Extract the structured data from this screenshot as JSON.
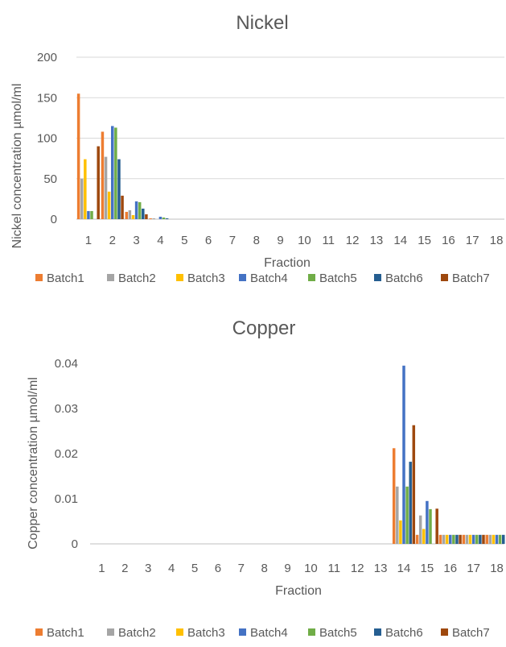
{
  "colors": {
    "Batch1": "#ED7D31",
    "Batch2": "#A5A5A5",
    "Batch3": "#FFC000",
    "Batch4": "#4472C4",
    "Batch5": "#70AD47",
    "Batch6": "#255E91",
    "Batch7": "#9E480E",
    "text": "#595959",
    "grid": "#D9D9D9",
    "axis": "#BFBFBF"
  },
  "chart_data": [
    {
      "type": "bar",
      "title": "Nickel",
      "xlabel": "Fraction",
      "ylabel": "Nickel concentration µmol/ml",
      "ylim": [
        0,
        200
      ],
      "yticks": [
        "0",
        "50",
        "100",
        "150",
        "200"
      ],
      "categories": [
        "1",
        "2",
        "3",
        "4",
        "5",
        "6",
        "7",
        "8",
        "9",
        "10",
        "11",
        "12",
        "13",
        "14",
        "15",
        "16",
        "17",
        "18"
      ],
      "grid": true,
      "legend": "bottom",
      "series": [
        {
          "name": "Batch1",
          "values": [
            155,
            108,
            9,
            1,
            0,
            0,
            0,
            0,
            0,
            0,
            0,
            0,
            0,
            0,
            0,
            0,
            0,
            0
          ]
        },
        {
          "name": "Batch2",
          "values": [
            50,
            77,
            11,
            1,
            0,
            0,
            0,
            0,
            0,
            0,
            0,
            0,
            0,
            0,
            0,
            0,
            0,
            0
          ]
        },
        {
          "name": "Batch3",
          "values": [
            74,
            34,
            5,
            0,
            0,
            0,
            0,
            0,
            0,
            0,
            0,
            0,
            0,
            0,
            0,
            0,
            0,
            0
          ]
        },
        {
          "name": "Batch4",
          "values": [
            10,
            115,
            22,
            3,
            0,
            0,
            0,
            0,
            0,
            0,
            0,
            0,
            0,
            0,
            0,
            0,
            0,
            0
          ]
        },
        {
          "name": "Batch5",
          "values": [
            10,
            113,
            21,
            2,
            0,
            0,
            0,
            0,
            0,
            0,
            0,
            0,
            0,
            0,
            0,
            0,
            0,
            0
          ]
        },
        {
          "name": "Batch6",
          "values": [
            0,
            74,
            13,
            1,
            0,
            0,
            0,
            0,
            0,
            0,
            0,
            0,
            0,
            0,
            0,
            0,
            0,
            0
          ]
        },
        {
          "name": "Batch7",
          "values": [
            90,
            29,
            6,
            0,
            0,
            0,
            0,
            0,
            0,
            0,
            0,
            0,
            0,
            0,
            0,
            0,
            0,
            0
          ]
        }
      ]
    },
    {
      "type": "bar",
      "title": "Copper",
      "xlabel": "Fraction",
      "ylabel": "Copper concentration µmol/ml",
      "ylim": [
        0,
        0.04
      ],
      "yticks": [
        "0",
        "0.01",
        "0.02",
        "0.03",
        "0.04"
      ],
      "categories": [
        "1",
        "2",
        "3",
        "4",
        "5",
        "6",
        "7",
        "8",
        "9",
        "10",
        "11",
        "12",
        "13",
        "14",
        "15",
        "16",
        "17",
        "18"
      ],
      "grid": false,
      "legend": "bottom",
      "series": [
        {
          "name": "Batch1",
          "values": [
            0,
            0,
            0,
            0,
            0,
            0,
            0,
            0,
            0,
            0,
            0,
            0,
            0,
            0.0212,
            0.002,
            0.002,
            0.002,
            0.002
          ]
        },
        {
          "name": "Batch2",
          "values": [
            0,
            0,
            0,
            0,
            0,
            0,
            0,
            0,
            0,
            0,
            0,
            0,
            0,
            0.0127,
            0.0063,
            0.002,
            0.002,
            0.002
          ]
        },
        {
          "name": "Batch3",
          "values": [
            0,
            0,
            0,
            0,
            0,
            0,
            0,
            0,
            0,
            0,
            0,
            0,
            0,
            0.0052,
            0.0033,
            0.002,
            0.002,
            0.002
          ]
        },
        {
          "name": "Batch4",
          "values": [
            0,
            0,
            0,
            0,
            0,
            0,
            0,
            0,
            0,
            0,
            0,
            0,
            0,
            0.0395,
            0.0095,
            0.002,
            0.002,
            0.002
          ]
        },
        {
          "name": "Batch5",
          "values": [
            0,
            0,
            0,
            0,
            0,
            0,
            0,
            0,
            0,
            0,
            0,
            0,
            0,
            0.0127,
            0.0077,
            0.002,
            0.002,
            0.002
          ]
        },
        {
          "name": "Batch6",
          "values": [
            0,
            0,
            0,
            0,
            0,
            0,
            0,
            0,
            0,
            0,
            0,
            0,
            0,
            0.0182,
            0,
            0.002,
            0.002,
            0.002
          ]
        },
        {
          "name": "Batch7",
          "values": [
            0,
            0,
            0,
            0,
            0,
            0,
            0,
            0,
            0,
            0,
            0,
            0,
            0,
            0.0263,
            0.0078,
            0.002,
            0.002,
            0
          ]
        }
      ]
    }
  ]
}
